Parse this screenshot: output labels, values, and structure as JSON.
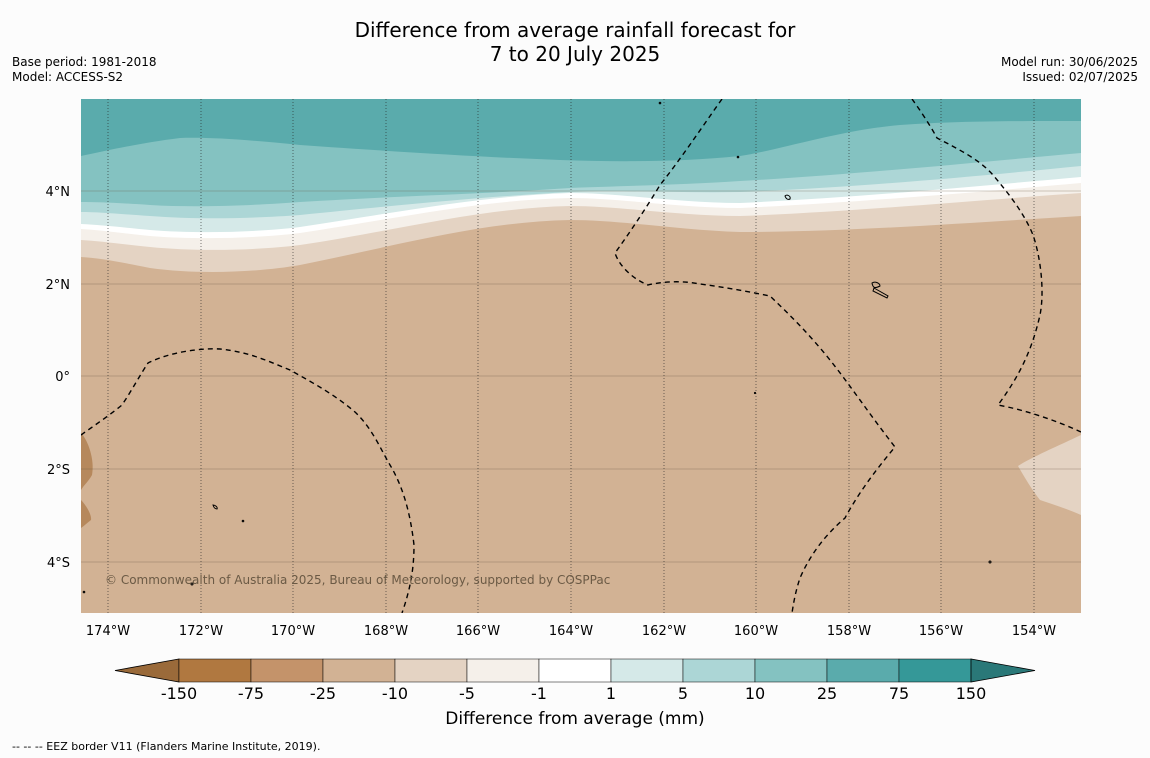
{
  "title_line1": "Difference from average rainfall forecast for",
  "title_line2": "7 to 20 July 2025",
  "base_period": "Base period: 1981-2018",
  "model": "Model: ACCESS-S2",
  "model_run": "Model run: 30/06/2025",
  "issued": "Issued: 02/07/2025",
  "lat_labels": [
    "4°N",
    "2°N",
    "0°",
    "2°S",
    "4°S"
  ],
  "lon_labels": [
    "174°W",
    "172°W",
    "170°W",
    "168°W",
    "166°W",
    "164°W",
    "162°W",
    "160°W",
    "158°W",
    "156°W",
    "154°W"
  ],
  "copyright": "© Commonwealth of Australia 2025, Bureau of Meteorology, supported by COSPPac",
  "colorbar": {
    "ticks": [
      "-150",
      "-75",
      "-25",
      "-10",
      "-5",
      "-1",
      "1",
      "5",
      "10",
      "25",
      "75",
      "150"
    ],
    "colors": [
      "#9a6a3a",
      "#b07840",
      "#c4936a",
      "#d2b294",
      "#e4d3c3",
      "#f5f0ea",
      "#ffffff",
      "#d5e9e8",
      "#acd6d6",
      "#84c2c1",
      "#5aabac",
      "#359898",
      "#2a7878"
    ],
    "label": "Difference from average (mm)"
  },
  "footnote": "--  --  -- EEZ border V11 (Flanders Marine Institute, 2019)."
}
